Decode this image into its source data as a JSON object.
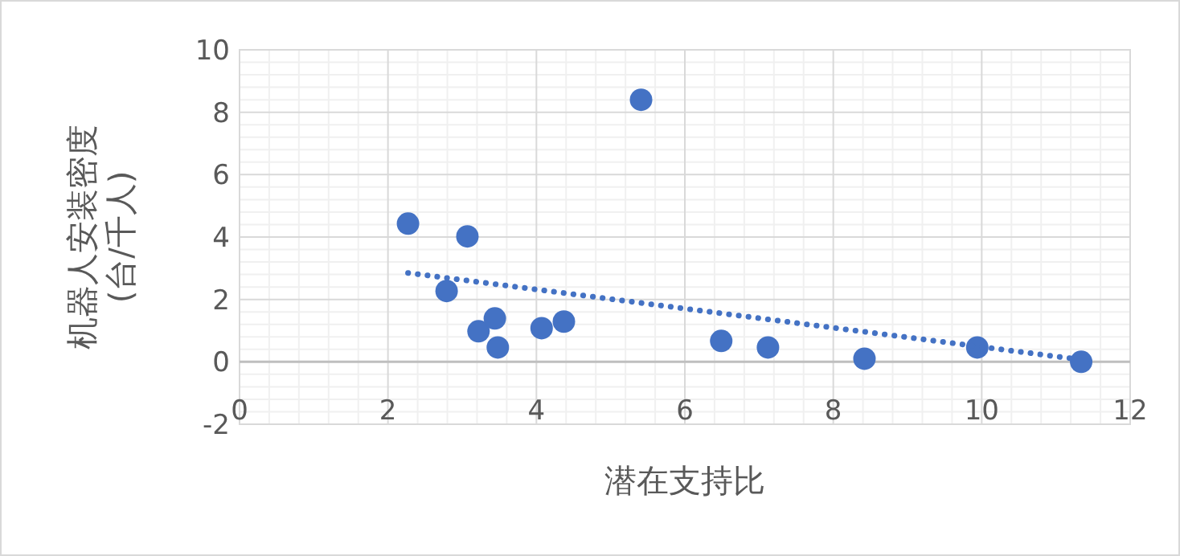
{
  "chart_data": {
    "type": "scatter",
    "xlabel": "潜在支持比",
    "ylabel": "机器人安装密度\n(台/千人)",
    "xlim": [
      0,
      12
    ],
    "ylim": [
      -2,
      10
    ],
    "xticks": [
      0,
      2,
      4,
      6,
      8,
      10,
      12
    ],
    "yticks": [
      -2,
      0,
      2,
      4,
      6,
      8,
      10
    ],
    "grid": true,
    "marker": "circle",
    "series": [
      {
        "color": "#4472c4",
        "x": [
          2.27,
          3.07,
          5.41,
          2.79,
          3.22,
          3.44,
          3.48,
          4.07,
          4.37,
          6.49,
          7.12,
          8.42,
          9.94,
          11.34
        ],
        "values": [
          4.43,
          4.02,
          8.4,
          2.27,
          0.98,
          1.39,
          0.46,
          1.08,
          1.29,
          0.67,
          0.46,
          0.1,
          0.46,
          0.0
        ]
      },
      {
        "type": "line",
        "color": "#4472c4",
        "line_style": "dotted",
        "marker": "none",
        "x": [
          2.27,
          11.3
        ],
        "values": [
          2.85,
          0.08
        ]
      }
    ]
  }
}
